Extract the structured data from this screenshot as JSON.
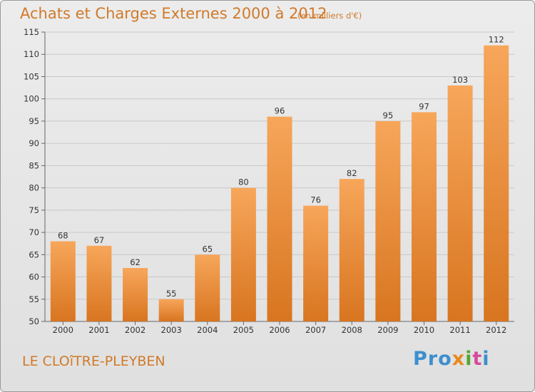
{
  "header": {
    "title": "Achats et Charges Externes 2000 à 2012",
    "subtitle": "(en milliers d'€)"
  },
  "footer": {
    "commune": "LE CLOîTRE-PLEYBEN",
    "logo_parts": [
      "Pro",
      "x",
      "i",
      "t",
      "i"
    ]
  },
  "colors": {
    "bar_light": "#f7a65a",
    "bar_dark": "#d87520",
    "accent_text": "#d07a2a",
    "logo": [
      "#3d8fcf",
      "#e8891f",
      "#5aa531",
      "#d64a9b",
      "#3d8fcf"
    ]
  },
  "chart_data": {
    "type": "bar",
    "categories": [
      "2000",
      "2001",
      "2002",
      "2003",
      "2004",
      "2005",
      "2006",
      "2007",
      "2008",
      "2009",
      "2010",
      "2011",
      "2012"
    ],
    "values": [
      68,
      67,
      62,
      55,
      65,
      80,
      96,
      76,
      82,
      95,
      97,
      103,
      112
    ],
    "title": "Achats et Charges Externes 2000 à 2012",
    "xlabel": "",
    "ylabel": "",
    "ylim": [
      50,
      115
    ],
    "yticks": [
      50,
      55,
      60,
      65,
      70,
      75,
      80,
      85,
      90,
      95,
      100,
      105,
      110,
      115
    ],
    "grid": true,
    "data_labels": true
  }
}
